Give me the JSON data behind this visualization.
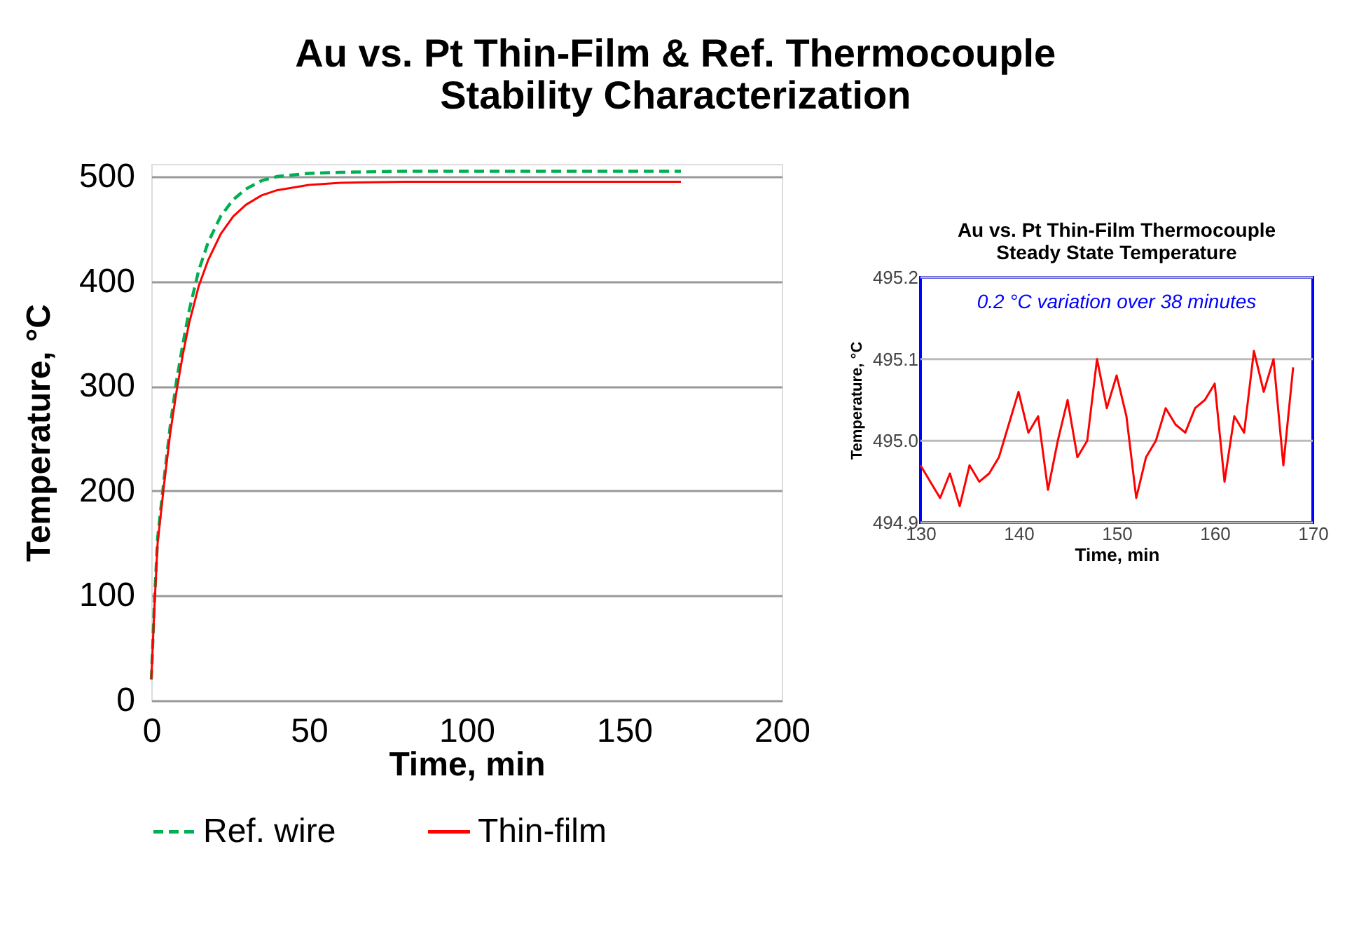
{
  "chart_data": [
    {
      "type": "line",
      "title": [
        "Au vs. Pt Thin-Film & Ref. Thermocouple",
        "Stability Characterization"
      ],
      "xlabel": "Time, min",
      "ylabel": "Temperature, °C",
      "x": [
        0,
        1,
        2,
        4,
        6,
        8,
        10,
        12,
        15,
        18,
        22,
        26,
        30,
        35,
        40,
        50,
        60,
        80,
        100,
        130,
        168
      ],
      "series": [
        {
          "name": "Ref. wire",
          "color": "#00b050",
          "line_style": "dashed",
          "values": [
            20,
            95,
            155,
            210,
            262,
            305,
            340,
            372,
            410,
            437,
            462,
            478,
            488,
            496,
            500,
            503,
            504,
            505,
            505,
            505,
            505
          ]
        },
        {
          "name": "Thin-film",
          "color": "#ff0000",
          "line_style": "solid",
          "values": [
            20,
            90,
            150,
            205,
            255,
            295,
            330,
            360,
            395,
            420,
            445,
            462,
            473,
            482,
            487,
            492,
            494,
            495,
            495,
            495,
            495
          ]
        }
      ],
      "xlim": [
        0,
        200
      ],
      "xticks": [
        0,
        50,
        100,
        150,
        200
      ],
      "ylim": [
        0,
        512
      ],
      "yticks": [
        0,
        100,
        200,
        300,
        400,
        500
      ],
      "grid": "y",
      "legend": "bottom"
    },
    {
      "type": "line",
      "title": [
        "Au vs. Pt Thin-Film Thermocouple",
        "Steady State Temperature"
      ],
      "xlabel": "Time, min",
      "ylabel": "Temperature, °C",
      "x": [
        130,
        131,
        132,
        133,
        134,
        135,
        136,
        137,
        138,
        139,
        140,
        141,
        142,
        143,
        144,
        145,
        146,
        147,
        148,
        149,
        150,
        151,
        152,
        153,
        154,
        155,
        156,
        157,
        158,
        159,
        160,
        161,
        162,
        163,
        164,
        165,
        166,
        167,
        168
      ],
      "series": [
        {
          "color": "#ff0000",
          "values": [
            494.97,
            494.95,
            494.93,
            494.96,
            494.92,
            494.97,
            494.95,
            494.96,
            494.98,
            495.02,
            495.06,
            495.01,
            495.03,
            494.94,
            495.0,
            495.05,
            494.98,
            495.0,
            495.1,
            495.04,
            495.08,
            495.03,
            494.93,
            494.98,
            495.0,
            495.04,
            495.02,
            495.01,
            495.04,
            495.05,
            495.07,
            494.95,
            495.03,
            495.01,
            495.11,
            495.06,
            495.1,
            494.97,
            495.09
          ]
        }
      ],
      "xlim": [
        130,
        170
      ],
      "xticks": [
        130,
        140,
        150,
        160,
        170
      ],
      "ylim": [
        494.9,
        495.2
      ],
      "yticks": [
        {
          "value": 494.9,
          "label": "494.9"
        },
        {
          "value": 495.0,
          "label": "495.0"
        },
        {
          "value": 495.1,
          "label": "495.1"
        },
        {
          "value": 495.2,
          "label": "495.2"
        }
      ],
      "grid": "y",
      "annotations": [
        "0.2 °C variation over 38 minutes"
      ]
    }
  ]
}
